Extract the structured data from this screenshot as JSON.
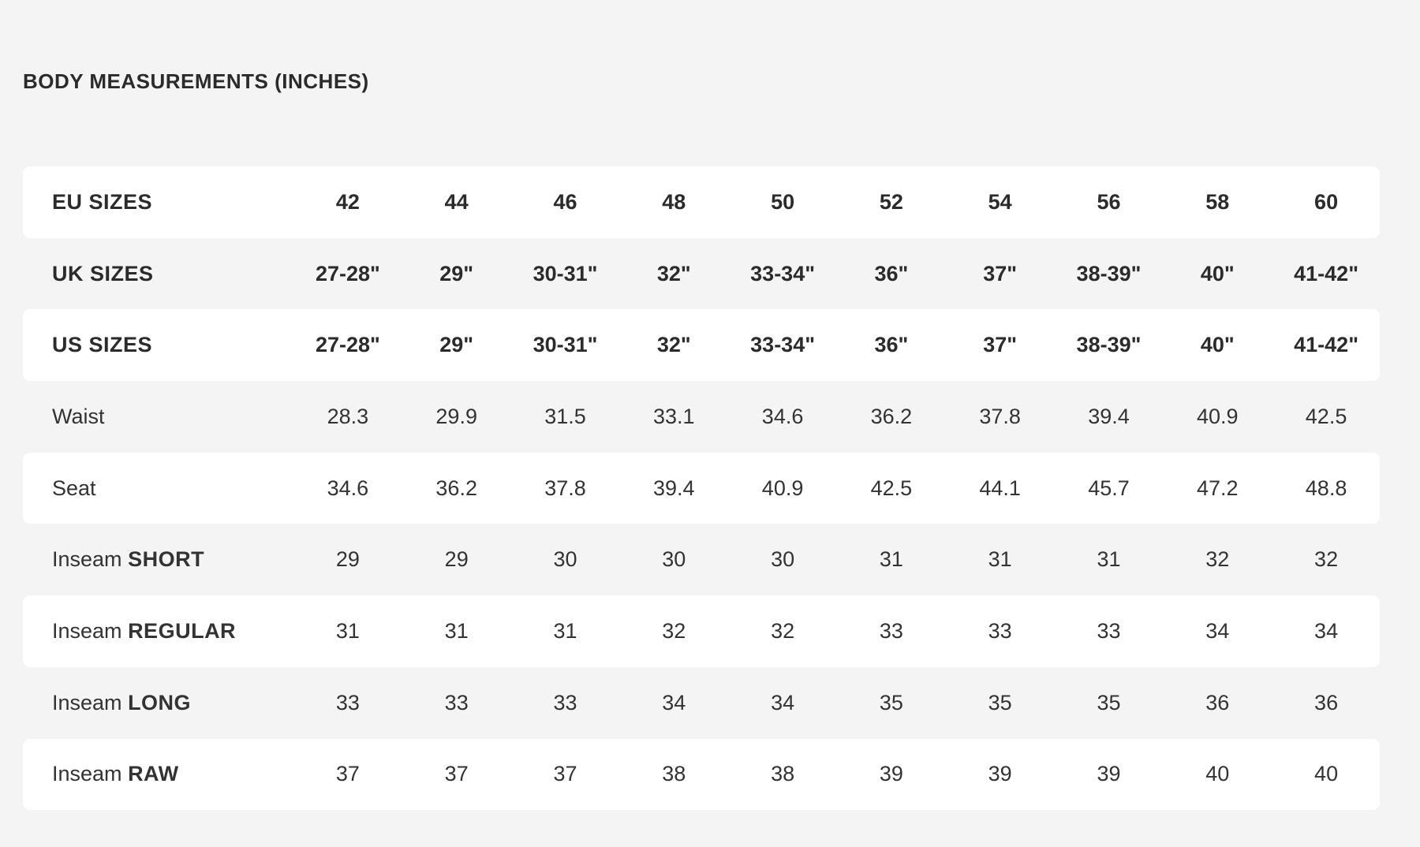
{
  "title": "BODY MEASUREMENTS (INCHES)",
  "rows": [
    {
      "label": "EU SIZES",
      "type": "header",
      "values": [
        "42",
        "44",
        "46",
        "48",
        "50",
        "52",
        "54",
        "56",
        "58",
        "60"
      ]
    },
    {
      "label": "UK SIZES",
      "type": "header",
      "values": [
        "27-28\"",
        "29\"",
        "30-31\"",
        "32\"",
        "33-34\"",
        "36\"",
        "37\"",
        "38-39\"",
        "40\"",
        "41-42\""
      ]
    },
    {
      "label": "US SIZES",
      "type": "header",
      "values": [
        "27-28\"",
        "29\"",
        "30-31\"",
        "32\"",
        "33-34\"",
        "36\"",
        "37\"",
        "38-39\"",
        "40\"",
        "41-42\""
      ]
    },
    {
      "label": "Waist",
      "type": "body",
      "values": [
        "28.3",
        "29.9",
        "31.5",
        "33.1",
        "34.6",
        "36.2",
        "37.8",
        "39.4",
        "40.9",
        "42.5"
      ]
    },
    {
      "label": "Seat",
      "type": "body",
      "values": [
        "34.6",
        "36.2",
        "37.8",
        "39.4",
        "40.9",
        "42.5",
        "44.1",
        "45.7",
        "47.2",
        "48.8"
      ]
    },
    {
      "label": "Inseam",
      "label_emphasis": "SHORT",
      "type": "body",
      "values": [
        "29",
        "29",
        "30",
        "30",
        "30",
        "31",
        "31",
        "31",
        "32",
        "32"
      ]
    },
    {
      "label": "Inseam",
      "label_emphasis": "REGULAR",
      "type": "body",
      "values": [
        "31",
        "31",
        "31",
        "32",
        "32",
        "33",
        "33",
        "33",
        "34",
        "34"
      ]
    },
    {
      "label": "Inseam",
      "label_emphasis": "LONG",
      "type": "body",
      "values": [
        "33",
        "33",
        "33",
        "34",
        "34",
        "35",
        "35",
        "35",
        "36",
        "36"
      ]
    },
    {
      "label": "Inseam",
      "label_emphasis": "RAW",
      "type": "body",
      "values": [
        "37",
        "37",
        "37",
        "38",
        "38",
        "39",
        "39",
        "39",
        "40",
        "40"
      ]
    }
  ],
  "colors": {
    "background": "#f4f4f4",
    "row_highlight": "#ffffff",
    "text": "#2b2b2b"
  }
}
